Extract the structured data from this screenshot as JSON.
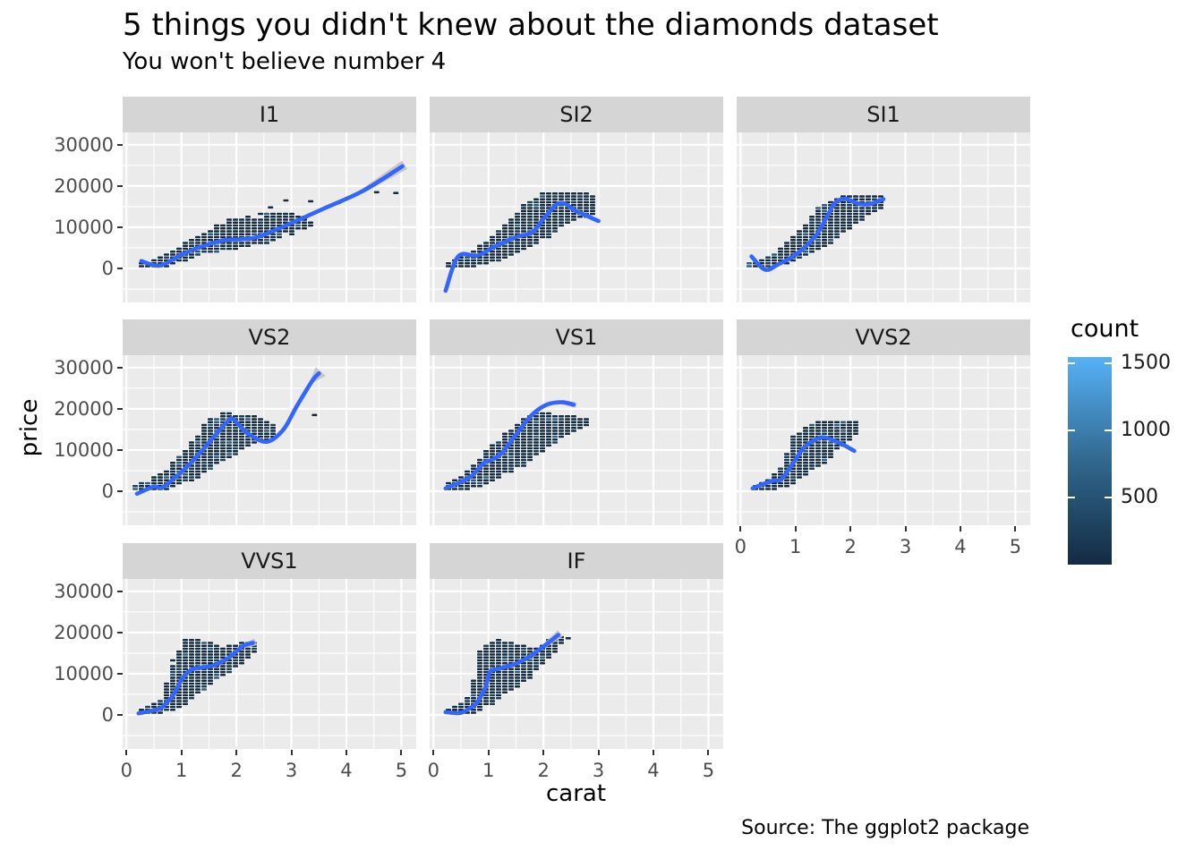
{
  "title": "5 things you didn't knew about the diamonds dataset",
  "subtitle": "You won't believe number 4",
  "caption": "Source: The ggplot2 package",
  "axes": {
    "x_label": "carat",
    "y_label": "price",
    "x_ticks": [
      0,
      1,
      2,
      3,
      4,
      5
    ],
    "y_ticks": [
      0,
      10000,
      20000,
      30000
    ]
  },
  "legend": {
    "title": "count",
    "ticks": [
      500,
      1000,
      1500
    ],
    "top_value": 1550,
    "color_low": "#132B43",
    "color_mid": "#31688E",
    "color_high": "#56B1F7"
  },
  "colors": {
    "panel_bg": "#EBEBEB",
    "strip_bg": "#D5D5D5",
    "grid": "#FFFFFF",
    "smooth_line": "#3366FF",
    "ribbon": "#C2C2C2",
    "point_dark": "#132B43",
    "point_mid": "#1C4059",
    "point_light": "#2B5C85",
    "axis_text": "#4D4D4D",
    "tick_mark": "#333333"
  },
  "chart_data": {
    "type": "scatter",
    "note": "diamonds dataset: price vs carat, binned points colored by count, loess smooth, faceted by clarity",
    "x_domain": [
      -0.07,
      5.27
    ],
    "y_domain": [
      -8250,
      33000
    ],
    "facets": [
      {
        "label": "I1",
        "row": 0,
        "col": 0,
        "show_y": true,
        "show_x": false,
        "n_points": 200,
        "ribbon_tail": 11,
        "seed": 9980,
        "smooth": [
          [
            0.27,
            1800
          ],
          [
            0.6,
            700
          ],
          [
            1.0,
            3300
          ],
          [
            1.3,
            5000
          ],
          [
            1.75,
            6800
          ],
          [
            2.1,
            7100
          ],
          [
            2.4,
            7700
          ],
          [
            3.0,
            11000
          ],
          [
            3.6,
            14600
          ],
          [
            4.3,
            18800
          ],
          [
            5.02,
            24800
          ]
        ],
        "band": [
          [
            0.3,
            300,
            1300
          ],
          [
            0.6,
            300,
            2600
          ],
          [
            1.0,
            1500,
            5500
          ],
          [
            1.5,
            3500,
            9200
          ],
          [
            2.0,
            4500,
            12500
          ],
          [
            2.5,
            6000,
            13500
          ],
          [
            3.0,
            8500,
            13500
          ],
          [
            3.3,
            9500,
            12500
          ]
        ],
        "strays": [
          [
            3.35,
            16300
          ],
          [
            3.85,
            15900
          ],
          [
            4.55,
            18500
          ],
          [
            4.9,
            18300
          ],
          [
            2.62,
            14800
          ],
          [
            2.9,
            16500
          ]
        ]
      },
      {
        "label": "SI2",
        "row": 0,
        "col": 1,
        "show_y": false,
        "show_x": false,
        "n_points": 270,
        "ribbon_tail": 0,
        "seed": 19953,
        "smooth": [
          [
            0.22,
            -5400
          ],
          [
            0.45,
            2900
          ],
          [
            0.8,
            3100
          ],
          [
            1.1,
            5200
          ],
          [
            1.5,
            7600
          ],
          [
            1.8,
            8800
          ],
          [
            2.0,
            12000
          ],
          [
            2.3,
            15900
          ],
          [
            2.6,
            13900
          ],
          [
            3.0,
            11500
          ]
        ],
        "band": [
          [
            0.22,
            300,
            1100
          ],
          [
            0.5,
            400,
            2600
          ],
          [
            0.8,
            800,
            4500
          ],
          [
            1.2,
            2000,
            9000
          ],
          [
            1.6,
            4000,
            14500
          ],
          [
            2.0,
            7000,
            18200
          ],
          [
            2.4,
            11000,
            18600
          ],
          [
            2.7,
            12000,
            18300
          ],
          [
            2.92,
            13000,
            17500
          ]
        ],
        "strays": []
      },
      {
        "label": "SI1",
        "row": 0,
        "col": 2,
        "show_y": false,
        "show_x": false,
        "n_points": 250,
        "ribbon_tail": 0,
        "seed": 29926,
        "smooth": [
          [
            0.2,
            2900
          ],
          [
            0.45,
            -300
          ],
          [
            0.7,
            1100
          ],
          [
            1.0,
            3300
          ],
          [
            1.35,
            7600
          ],
          [
            1.55,
            12000
          ],
          [
            1.72,
            15900
          ],
          [
            1.9,
            16900
          ],
          [
            2.15,
            15700
          ],
          [
            2.35,
            15600
          ],
          [
            2.6,
            16800
          ]
        ],
        "band": [
          [
            0.2,
            300,
            1200
          ],
          [
            0.5,
            400,
            2500
          ],
          [
            0.8,
            1000,
            5000
          ],
          [
            1.1,
            2500,
            9000
          ],
          [
            1.5,
            5000,
            15500
          ],
          [
            1.8,
            8000,
            17800
          ],
          [
            2.1,
            11000,
            17800
          ],
          [
            2.4,
            14000,
            17500
          ],
          [
            2.55,
            15000,
            17200
          ]
        ],
        "strays": []
      },
      {
        "label": "VS2",
        "row": 1,
        "col": 0,
        "show_y": true,
        "show_x": false,
        "n_points": 270,
        "ribbon_tail": 15,
        "seed": 39899,
        "smooth": [
          [
            0.19,
            -600
          ],
          [
            0.5,
            1100
          ],
          [
            0.65,
            900
          ],
          [
            1.0,
            4700
          ],
          [
            1.3,
            8700
          ],
          [
            1.6,
            13400
          ],
          [
            1.85,
            17100
          ],
          [
            1.95,
            17400
          ],
          [
            2.2,
            14100
          ],
          [
            2.55,
            12000
          ],
          [
            2.85,
            14900
          ],
          [
            3.1,
            20700
          ],
          [
            3.38,
            26800
          ],
          [
            3.5,
            28600
          ]
        ],
        "band": [
          [
            0.2,
            200,
            1000
          ],
          [
            0.5,
            400,
            2800
          ],
          [
            0.8,
            1000,
            5500
          ],
          [
            1.1,
            2500,
            10000
          ],
          [
            1.5,
            5000,
            17500
          ],
          [
            1.8,
            8000,
            18800
          ],
          [
            2.1,
            10000,
            18500
          ],
          [
            2.4,
            12000,
            18000
          ],
          [
            2.62,
            13000,
            17000
          ]
        ],
        "strays": [
          [
            3.42,
            18500
          ]
        ]
      },
      {
        "label": "VS1",
        "row": 1,
        "col": 1,
        "show_y": false,
        "show_x": false,
        "n_points": 250,
        "ribbon_tail": 6,
        "seed": 49872,
        "smooth": [
          [
            0.22,
            700
          ],
          [
            0.65,
            3300
          ],
          [
            0.92,
            6900
          ],
          [
            1.06,
            7600
          ],
          [
            1.25,
            9400
          ],
          [
            1.52,
            14100
          ],
          [
            1.79,
            18500
          ],
          [
            2.06,
            21000
          ],
          [
            2.34,
            21600
          ],
          [
            2.55,
            21000
          ]
        ],
        "band": [
          [
            0.25,
            300,
            1300
          ],
          [
            0.5,
            500,
            3000
          ],
          [
            0.8,
            1200,
            6500
          ],
          [
            1.1,
            3000,
            11000
          ],
          [
            1.4,
            5000,
            15000
          ],
          [
            1.7,
            7000,
            18200
          ],
          [
            2.0,
            10000,
            19000
          ],
          [
            2.3,
            13000,
            18500
          ],
          [
            2.6,
            15000,
            18000
          ],
          [
            2.78,
            16000,
            17500
          ]
        ],
        "strays": []
      },
      {
        "label": "VVS2",
        "row": 1,
        "col": 2,
        "show_y": false,
        "show_x": true,
        "n_points": 210,
        "ribbon_tail": 0,
        "seed": 59845,
        "smooth": [
          [
            0.22,
            700
          ],
          [
            0.57,
            2500
          ],
          [
            0.74,
            2900
          ],
          [
            0.96,
            6900
          ],
          [
            1.15,
            10500
          ],
          [
            1.39,
            12700
          ],
          [
            1.55,
            13000
          ],
          [
            1.82,
            11600
          ],
          [
            2.07,
            9800
          ]
        ],
        "band": [
          [
            0.25,
            200,
            1000
          ],
          [
            0.5,
            400,
            2500
          ],
          [
            0.8,
            1000,
            6000
          ],
          [
            1.0,
            2500,
            13500
          ],
          [
            1.3,
            5000,
            16800
          ],
          [
            1.6,
            8000,
            17000
          ],
          [
            1.9,
            12000,
            17000
          ],
          [
            2.12,
            14000,
            16500
          ]
        ],
        "strays": []
      },
      {
        "label": "VVS1",
        "row": 2,
        "col": 0,
        "show_y": true,
        "show_x": true,
        "n_points": 220,
        "ribbon_tail": 8,
        "seed": 69818,
        "smooth": [
          [
            0.22,
            400
          ],
          [
            0.6,
            1500
          ],
          [
            0.72,
            2900
          ],
          [
            0.85,
            4700
          ],
          [
            1.01,
            8700
          ],
          [
            1.17,
            10900
          ],
          [
            1.31,
            11400
          ],
          [
            1.58,
            12000
          ],
          [
            1.85,
            13800
          ],
          [
            2.12,
            16700
          ],
          [
            2.3,
            17500
          ]
        ],
        "band": [
          [
            0.25,
            200,
            1000
          ],
          [
            0.5,
            400,
            2000
          ],
          [
            0.7,
            800,
            4000
          ],
          [
            0.9,
            1500,
            14000
          ],
          [
            1.1,
            3000,
            18300
          ],
          [
            1.4,
            6000,
            18500
          ],
          [
            1.7,
            9000,
            16000
          ],
          [
            2.0,
            12000,
            17000
          ],
          [
            2.28,
            15000,
            17500
          ]
        ],
        "strays": []
      },
      {
        "label": "IF",
        "row": 2,
        "col": 1,
        "show_y": false,
        "show_x": true,
        "n_points": 230,
        "ribbon_tail": 9,
        "seed": 79791,
        "smooth": [
          [
            0.22,
            700
          ],
          [
            0.49,
            500
          ],
          [
            0.68,
            1800
          ],
          [
            0.79,
            2900
          ],
          [
            0.95,
            6900
          ],
          [
            1.03,
            10500
          ],
          [
            1.19,
            11200
          ],
          [
            1.47,
            12300
          ],
          [
            1.74,
            14100
          ],
          [
            2.01,
            16700
          ],
          [
            2.27,
            19400
          ]
        ],
        "band": [
          [
            0.22,
            200,
            1200
          ],
          [
            0.5,
            300,
            2000
          ],
          [
            0.7,
            500,
            5000
          ],
          [
            0.9,
            1500,
            16000
          ],
          [
            1.1,
            3000,
            18500
          ],
          [
            1.4,
            6000,
            18000
          ],
          [
            1.7,
            9000,
            16000
          ],
          [
            2.0,
            13000,
            17000
          ],
          [
            2.32,
            18000,
            19500
          ]
        ],
        "strays": [
          [
            2.45,
            18600
          ]
        ]
      }
    ]
  }
}
